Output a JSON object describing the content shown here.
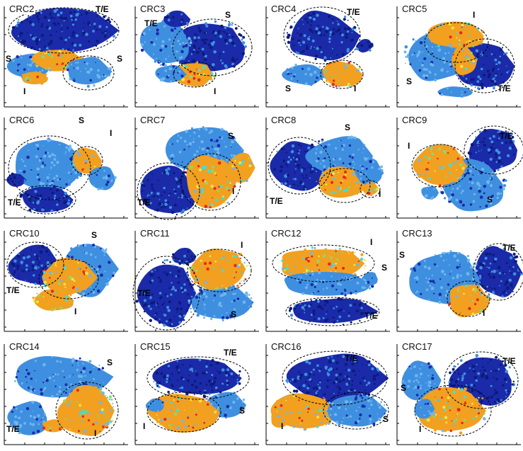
{
  "colors": {
    "te": "#1a2aa8",
    "te_dark": "#0d1a7a",
    "s": "#3f8fe0",
    "s_light": "#6fb6ee",
    "i_orange": "#f2a020",
    "i_red": "#e8261a",
    "i_yellow": "#f0e34a",
    "i_cyan": "#3fe0d8",
    "i_green": "#8fd86a",
    "outline": "#000000",
    "axis": "#000000"
  },
  "panels": [
    {
      "title": "CRC2",
      "labels": [
        "T/E",
        "S",
        "S",
        "I"
      ]
    },
    {
      "title": "CRC3",
      "labels": [
        "S",
        "T/E",
        "I"
      ]
    },
    {
      "title": "CRC4",
      "labels": [
        "T/E",
        "S",
        "I"
      ]
    },
    {
      "title": "CRC5",
      "labels": [
        "I",
        "S",
        "T/E"
      ]
    },
    {
      "title": "CRC6",
      "labels": [
        "S",
        "I",
        "T/E"
      ]
    },
    {
      "title": "CRC7",
      "labels": [
        "S",
        "I",
        "T/E"
      ]
    },
    {
      "title": "CRC8",
      "labels": [
        "S",
        "T/E",
        "I"
      ]
    },
    {
      "title": "CRC9",
      "labels": [
        "T/E",
        "I",
        "S"
      ]
    },
    {
      "title": "CRC10",
      "labels": [
        "S",
        "T/E",
        "I"
      ]
    },
    {
      "title": "CRC11",
      "labels": [
        "I",
        "T/E",
        "S"
      ]
    },
    {
      "title": "CRC12",
      "labels": [
        "I",
        "S",
        "T/E"
      ]
    },
    {
      "title": "CRC13",
      "labels": [
        "S",
        "T/E",
        "I"
      ]
    },
    {
      "title": "CRC14",
      "labels": [
        "S",
        "T/E",
        "I"
      ]
    },
    {
      "title": "CRC15",
      "labels": [
        "T/E",
        "S",
        "I"
      ]
    },
    {
      "title": "CRC16",
      "labels": [
        "T/E",
        "I",
        "S"
      ]
    },
    {
      "title": "CRC17",
      "labels": [
        "T/E",
        "S",
        "I"
      ]
    }
  ]
}
